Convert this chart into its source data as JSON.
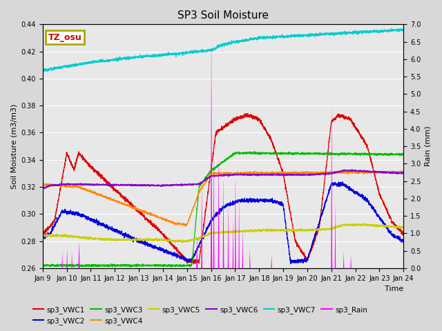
{
  "title": "SP3 Soil Moisture",
  "ylabel_left": "Soil Moisture (m3/m3)",
  "ylabel_right": "Rain (mm)",
  "xlabel": "Time",
  "xlim": [
    9,
    24
  ],
  "ylim_left": [
    0.26,
    0.44
  ],
  "ylim_right": [
    0.0,
    7.0
  ],
  "yticks_left": [
    0.26,
    0.28,
    0.3,
    0.32,
    0.34,
    0.36,
    0.38,
    0.4,
    0.42,
    0.44
  ],
  "yticks_right": [
    0.0,
    0.5,
    1.0,
    1.5,
    2.0,
    2.5,
    3.0,
    3.5,
    4.0,
    4.5,
    5.0,
    5.5,
    6.0,
    6.5,
    7.0
  ],
  "xtick_labels": [
    "Jan 9",
    "Jan 10",
    "Jan 11",
    "Jan 12",
    "Jan 13",
    "Jan 14",
    "Jan 15",
    "Jan 16",
    "Jan 17",
    "Jan 18",
    "Jan 19",
    "Jan 20",
    "Jan 21",
    "Jan 22",
    "Jan 23",
    "Jan 24"
  ],
  "fig_bg_color": "#d8d8d8",
  "plot_bg_color": "#e8e8e8",
  "grid_color": "#ffffff",
  "colors": {
    "VWC1": "#dd0000",
    "VWC2": "#0000dd",
    "VWC3": "#00bb00",
    "VWC4": "#ff8800",
    "VWC5": "#cccc00",
    "VWC6": "#8800cc",
    "VWC7": "#00cccc",
    "Rain": "#ff00ff"
  },
  "legend_box_edge_color": "#aaaa00",
  "legend_box_bg": "#ffffff",
  "legend_box_text": "TZ_osu",
  "legend_box_text_color": "#cc0000",
  "title_fontsize": 11,
  "label_fontsize": 8,
  "tick_fontsize": 7,
  "linewidth": 0.9
}
